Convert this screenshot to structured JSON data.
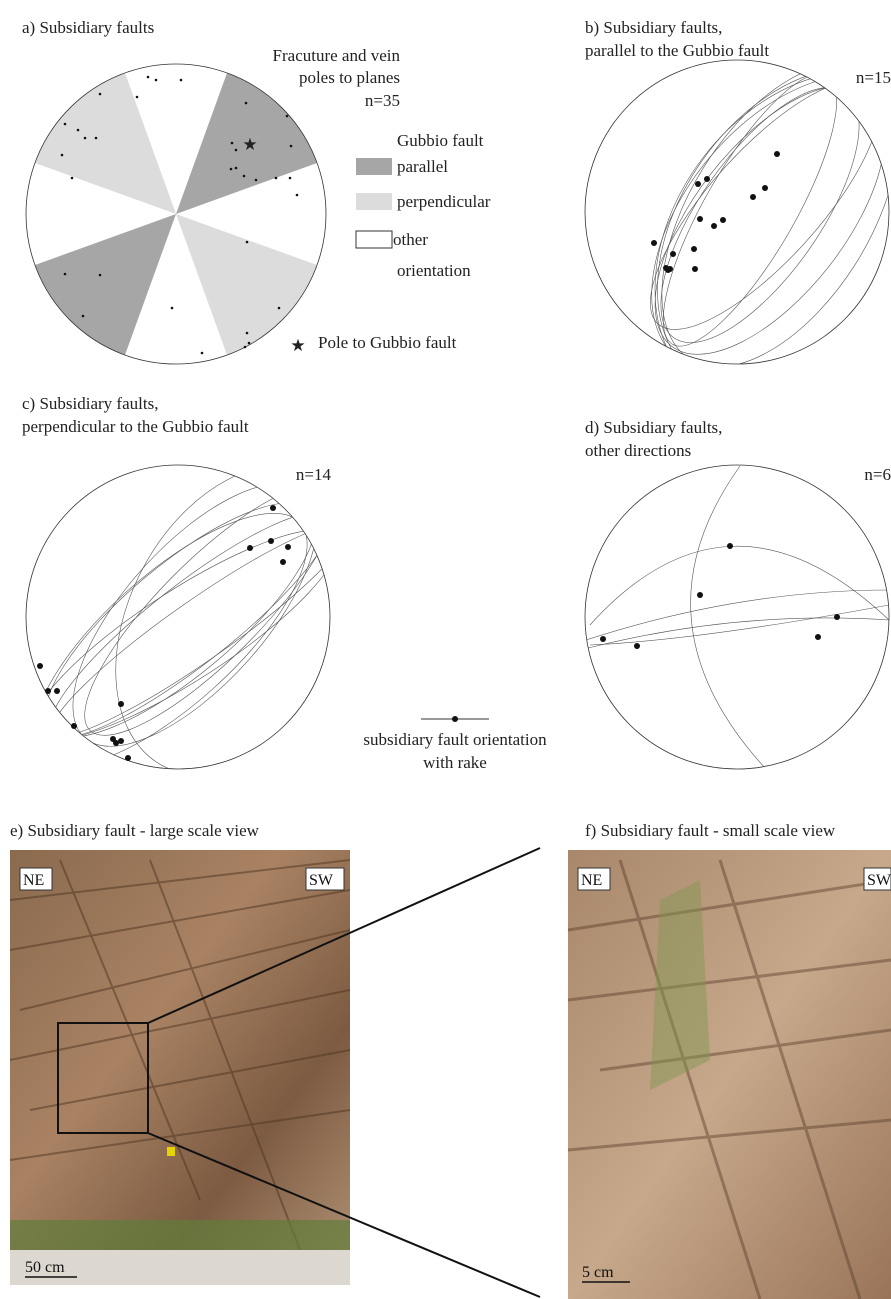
{
  "panels": {
    "a": {
      "title": "a) Subsidiary faults",
      "subtitle": [
        "Fracuture and vein",
        "poles to planes"
      ],
      "n": "n=35",
      "legend": {
        "title": "Gubbio fault",
        "items": [
          "parallel",
          "perpendicular",
          [
            "other",
            "orientation"
          ]
        ],
        "pole": "Pole to Gubbio fault"
      }
    },
    "b": {
      "title": [
        "b) Subsidiary faults,",
        "parallel to the Gubbio fault"
      ],
      "n": "n=15"
    },
    "c": {
      "title": [
        "c) Subsidiary faults,",
        "perpendicular to the Gubbio fault"
      ],
      "n": "n=14"
    },
    "d": {
      "title": [
        "d) Subsidiary faults,",
        "other directions"
      ],
      "n": "n=6"
    },
    "e": {
      "title": "e) Subsidiary fault - large scale view",
      "left": "NE",
      "right": "SW",
      "scale": "50 cm"
    },
    "f": {
      "title": "f) Subsidiary fault - small scale view",
      "left": "NE",
      "right": "SW",
      "scale": "5 cm"
    }
  },
  "rake_legend": [
    "subsidiary fault orientation",
    "with rake"
  ]
}
